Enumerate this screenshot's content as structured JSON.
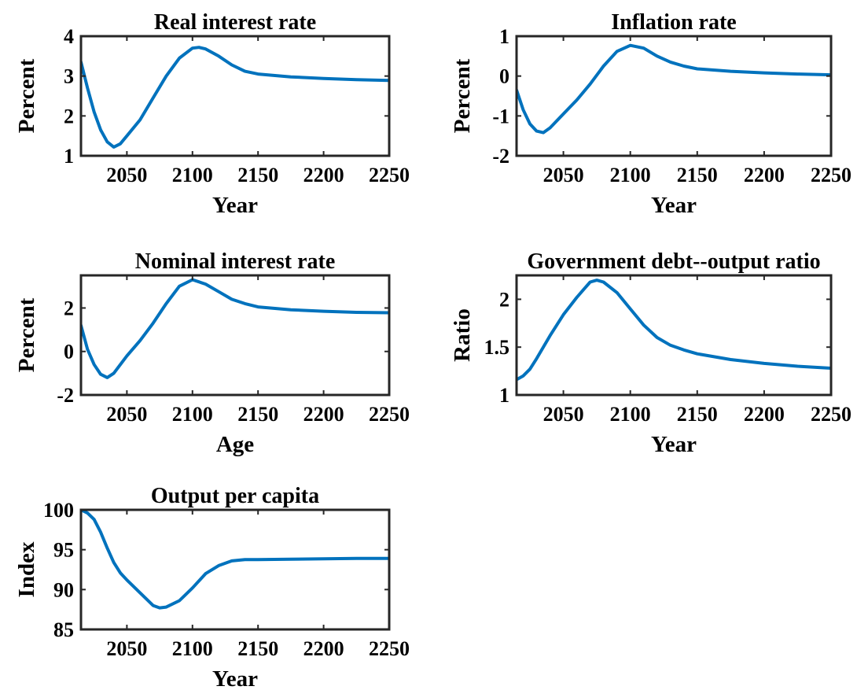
{
  "chart_data": [
    {
      "type": "line",
      "title": "Real interest rate",
      "xlabel": "Year",
      "ylabel": "Percent",
      "xlim": [
        2015,
        2250
      ],
      "ylim": [
        1,
        4
      ],
      "xticks": [
        2050,
        2100,
        2150,
        2200,
        2250
      ],
      "yticks": [
        1,
        2,
        3,
        4
      ],
      "line_color": "#0072BD",
      "x": [
        2015,
        2020,
        2025,
        2030,
        2035,
        2040,
        2045,
        2050,
        2060,
        2070,
        2080,
        2090,
        2100,
        2105,
        2110,
        2120,
        2130,
        2140,
        2150,
        2175,
        2200,
        2225,
        2250
      ],
      "y": [
        3.35,
        2.7,
        2.1,
        1.65,
        1.35,
        1.22,
        1.3,
        1.5,
        1.9,
        2.45,
        3.0,
        3.45,
        3.7,
        3.72,
        3.68,
        3.5,
        3.28,
        3.12,
        3.05,
        2.98,
        2.94,
        2.91,
        2.89
      ]
    },
    {
      "type": "line",
      "title": "Inflation rate",
      "xlabel": "Year",
      "ylabel": "Percent",
      "xlim": [
        2015,
        2250
      ],
      "ylim": [
        -2,
        1
      ],
      "xticks": [
        2050,
        2100,
        2150,
        2200,
        2250
      ],
      "yticks": [
        -2,
        -1,
        0,
        1
      ],
      "line_color": "#0072BD",
      "x": [
        2015,
        2020,
        2025,
        2030,
        2035,
        2040,
        2050,
        2060,
        2070,
        2080,
        2090,
        2100,
        2110,
        2120,
        2130,
        2140,
        2150,
        2175,
        2200,
        2225,
        2250
      ],
      "y": [
        -0.35,
        -0.85,
        -1.2,
        -1.38,
        -1.42,
        -1.3,
        -0.95,
        -0.6,
        -0.2,
        0.25,
        0.62,
        0.77,
        0.7,
        0.5,
        0.35,
        0.25,
        0.18,
        0.12,
        0.08,
        0.05,
        0.03
      ]
    },
    {
      "type": "line",
      "title": "Nominal interest rate",
      "xlabel": "Age",
      "ylabel": "Percent",
      "xlim": [
        2015,
        2250
      ],
      "ylim": [
        -2,
        3.5
      ],
      "xticks": [
        2050,
        2100,
        2150,
        2200,
        2250
      ],
      "yticks": [
        -2,
        0,
        2
      ],
      "line_color": "#0072BD",
      "x": [
        2015,
        2020,
        2025,
        2030,
        2035,
        2040,
        2050,
        2060,
        2070,
        2080,
        2090,
        2100,
        2110,
        2120,
        2130,
        2140,
        2150,
        2175,
        2200,
        2225,
        2250
      ],
      "y": [
        1.2,
        0.1,
        -0.6,
        -1.05,
        -1.2,
        -1.0,
        -0.2,
        0.5,
        1.3,
        2.2,
        3.0,
        3.3,
        3.1,
        2.75,
        2.4,
        2.2,
        2.05,
        1.92,
        1.85,
        1.8,
        1.78
      ]
    },
    {
      "type": "line",
      "title": "Government debt--output ratio",
      "xlabel": "Year",
      "ylabel": "Ratio",
      "xlim": [
        2015,
        2250
      ],
      "ylim": [
        1,
        2.25
      ],
      "xticks": [
        2050,
        2100,
        2150,
        2200,
        2250
      ],
      "yticks": [
        1,
        1.5,
        2
      ],
      "line_color": "#0072BD",
      "x": [
        2015,
        2020,
        2025,
        2030,
        2040,
        2050,
        2060,
        2065,
        2070,
        2075,
        2080,
        2090,
        2100,
        2110,
        2120,
        2130,
        2140,
        2150,
        2175,
        2200,
        2225,
        2250
      ],
      "y": [
        1.16,
        1.2,
        1.27,
        1.38,
        1.62,
        1.84,
        2.02,
        2.1,
        2.18,
        2.2,
        2.18,
        2.07,
        1.9,
        1.73,
        1.6,
        1.52,
        1.47,
        1.43,
        1.37,
        1.33,
        1.3,
        1.28
      ]
    },
    {
      "type": "line",
      "title": "Output per capita",
      "xlabel": "Year",
      "ylabel": "Index",
      "xlim": [
        2015,
        2250
      ],
      "ylim": [
        85,
        100
      ],
      "xticks": [
        2050,
        2100,
        2150,
        2200,
        2250
      ],
      "yticks": [
        85,
        90,
        95,
        100
      ],
      "line_color": "#0072BD",
      "x": [
        2015,
        2020,
        2025,
        2030,
        2035,
        2040,
        2045,
        2050,
        2060,
        2070,
        2075,
        2080,
        2090,
        2100,
        2110,
        2120,
        2130,
        2140,
        2150,
        2175,
        2200,
        2225,
        2250
      ],
      "y": [
        100,
        99.6,
        98.8,
        97.2,
        95.2,
        93.4,
        92.1,
        91.2,
        89.6,
        88.0,
        87.7,
        87.8,
        88.6,
        90.2,
        92.0,
        93.0,
        93.6,
        93.75,
        93.75,
        93.8,
        93.85,
        93.9,
        93.9
      ]
    }
  ]
}
